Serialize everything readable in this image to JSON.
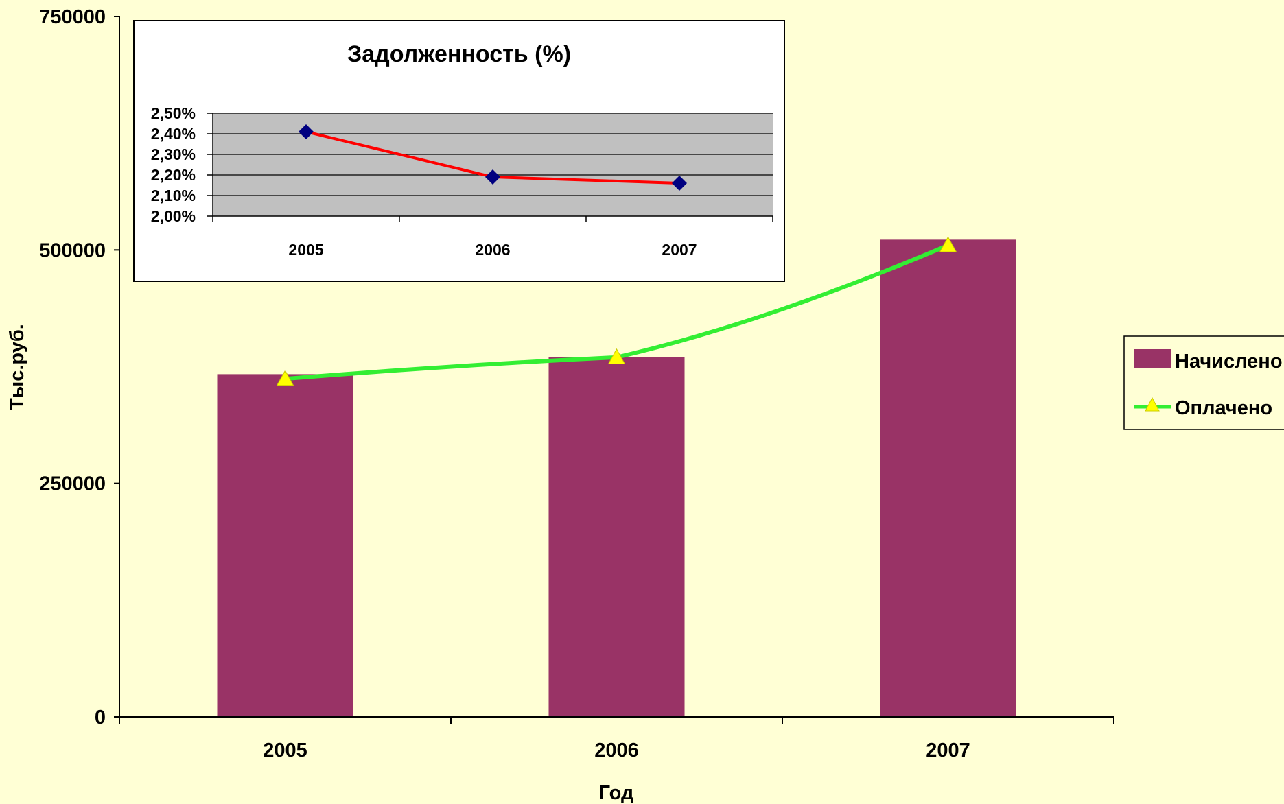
{
  "chart_data": [
    {
      "type": "bar",
      "categories": [
        "2005",
        "2006",
        "2007"
      ],
      "series": [
        {
          "name": "Начислено",
          "type": "bar",
          "color": "#993366",
          "values": [
            367000,
            385000,
            511000
          ]
        },
        {
          "name": "Оплачено",
          "type": "line",
          "color": "#33ee33",
          "marker": "triangle",
          "marker_color": "#ffff00",
          "values": [
            362000,
            385000,
            505000
          ]
        }
      ],
      "xlabel": "Год",
      "ylabel": "Тыс.руб.",
      "ylim": [
        0,
        750000
      ],
      "yticks": [
        "0",
        "250000",
        "500000",
        "750000"
      ],
      "legend": "right",
      "grid": false
    },
    {
      "type": "line",
      "title": "Задолженность (%)",
      "categories": [
        "2005",
        "2006",
        "2007"
      ],
      "series": [
        {
          "name": "",
          "color": "#ff0000",
          "marker": "diamond",
          "marker_color": "#000080",
          "values": [
            2.41,
            2.19,
            2.16
          ]
        }
      ],
      "ylim": [
        2.0,
        2.5
      ],
      "yticks": [
        "2,00%",
        "2,10%",
        "2,20%",
        "2,30%",
        "2,40%",
        "2,50%"
      ],
      "grid": true,
      "plot_background": "#c0c0c0"
    }
  ]
}
